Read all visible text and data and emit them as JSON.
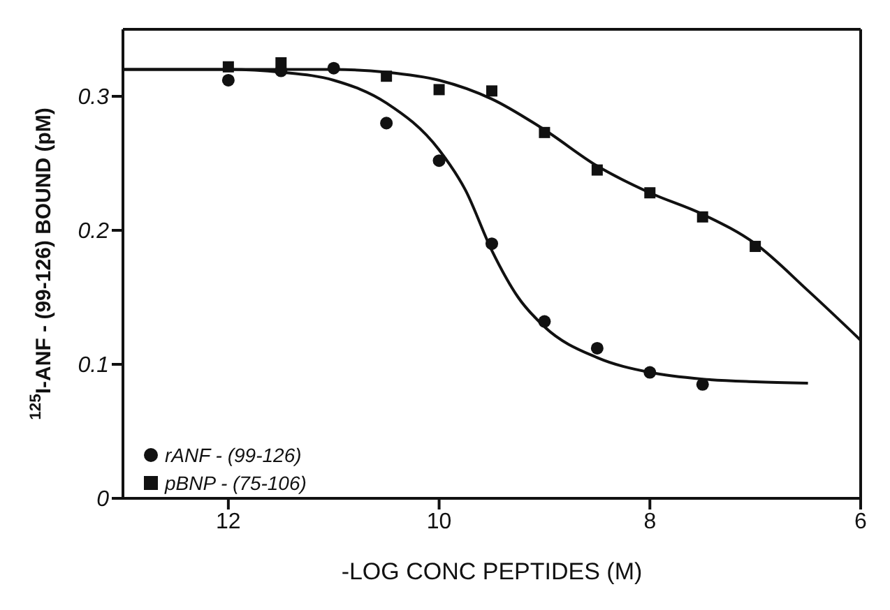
{
  "chart_data": {
    "type": "scatter",
    "xlabel": "-LOG CONC PEPTIDES (M)",
    "ylabel": "$^{125}$I-ANF - (99-126) BOUND (pM)",
    "xlim": [
      13,
      6
    ],
    "xticks": [
      12,
      10,
      8,
      6
    ],
    "ylim": [
      0,
      0.35
    ],
    "yticks": [
      0,
      0.1,
      0.2,
      0.3
    ],
    "grid": false,
    "legend": "bottom left",
    "series": [
      {
        "name": "rANF - (99-126)",
        "marker": "circle",
        "color": "#111111",
        "x": [
          12,
          11.5,
          11,
          10.5,
          10,
          9.5,
          9,
          8.5,
          8,
          7.5
        ],
        "values": [
          0.312,
          0.319,
          0.321,
          0.28,
          0.252,
          0.19,
          0.132,
          0.112,
          0.094,
          0.085
        ]
      },
      {
        "name": "pBNP - (75-106)",
        "marker": "square",
        "color": "#111111",
        "x": [
          12,
          11.5,
          10.5,
          10,
          9.5,
          9,
          8.5,
          8,
          7.5,
          7
        ],
        "values": [
          0.322,
          0.325,
          0.315,
          0.305,
          0.304,
          0.273,
          0.245,
          0.228,
          0.21,
          0.188
        ]
      },
      {
        "type": "line",
        "marker": "none",
        "line_style": "solid",
        "color": "#111111",
        "x": [
          13,
          12,
          11.5,
          11,
          10.5,
          10,
          9.75,
          9.5,
          9.25,
          9,
          8.5,
          8,
          7.5,
          7,
          6.5
        ],
        "values": [
          0.32,
          0.32,
          0.318,
          0.312,
          0.295,
          0.26,
          0.23,
          0.185,
          0.15,
          0.128,
          0.105,
          0.094,
          0.089,
          0.087,
          0.086
        ]
      },
      {
        "type": "line",
        "marker": "none",
        "line_style": "solid",
        "color": "#111111",
        "x": [
          13,
          11,
          10.5,
          10,
          9.5,
          9,
          8.5,
          8,
          7.5,
          7,
          6.5,
          6
        ],
        "values": [
          0.32,
          0.32,
          0.318,
          0.312,
          0.298,
          0.275,
          0.248,
          0.228,
          0.212,
          0.19,
          0.155,
          0.118
        ]
      }
    ]
  }
}
